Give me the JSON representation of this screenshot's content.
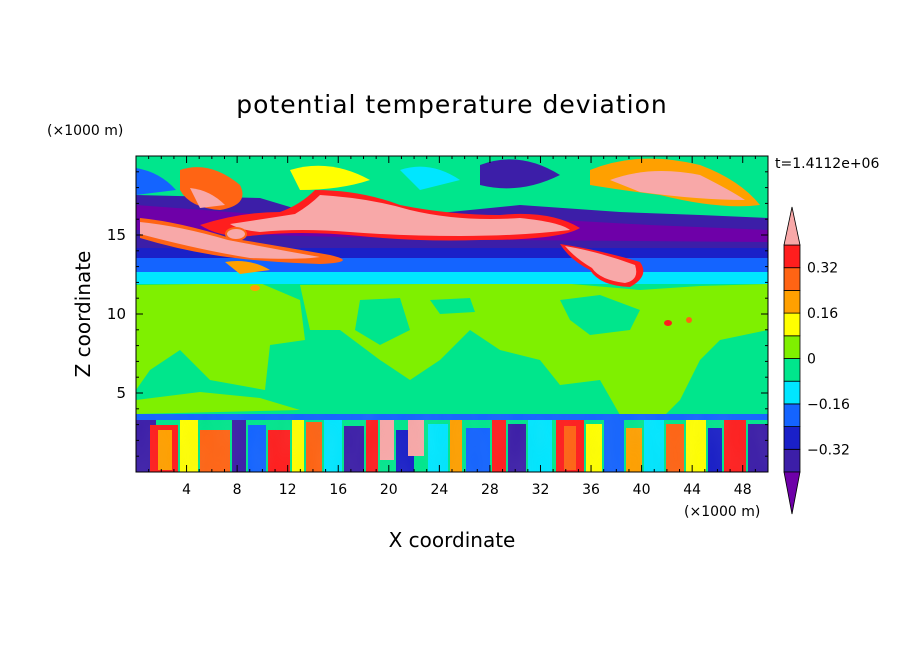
{
  "chart_data": {
    "type": "heatmap",
    "title": "potential temperature deviation",
    "xlabel": "X coordinate",
    "ylabel": "Z coordinate",
    "x_unit": "(×1000 m)",
    "y_unit": "(×1000 m)",
    "time_label": "t=1.4112e+06",
    "xlim": [
      0,
      50
    ],
    "ylim": [
      0,
      20
    ],
    "x_ticks": [
      4,
      8,
      12,
      16,
      20,
      24,
      28,
      32,
      36,
      40,
      44,
      48
    ],
    "y_ticks": [
      5,
      10,
      15
    ],
    "colorbar": {
      "levels": [
        -0.4,
        -0.32,
        -0.24,
        -0.16,
        -0.08,
        0,
        0.08,
        0.16,
        0.24,
        0.32,
        0.4
      ],
      "tick_values": [
        0.32,
        0.16,
        0,
        -0.16,
        -0.32
      ],
      "tick_labels": [
        "0.32",
        "0.16",
        "0",
        "−0.16",
        "−0.32"
      ],
      "colors": [
        "#6e00a8",
        "#3c1ea8",
        "#1a20c8",
        "#1464ff",
        "#00e6ff",
        "#00e68c",
        "#7ff000",
        "#ffff00",
        "#ffa000",
        "#ff6414",
        "#ff1e1e",
        "#f8a8a8"
      ]
    }
  }
}
